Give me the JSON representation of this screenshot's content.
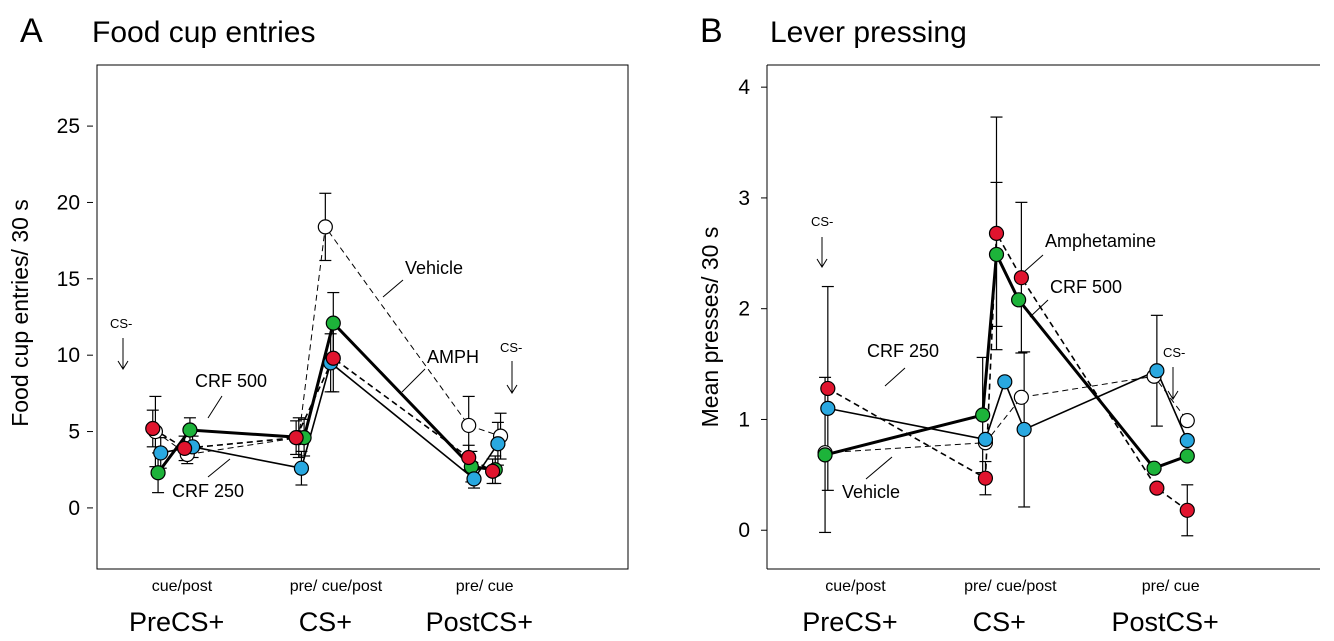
{
  "chart_data": [
    {
      "type": "line",
      "panel_letter": "A",
      "title": "Food cup entries",
      "ylabel": "Food cup entries/ 30 s",
      "ylim": [
        -4,
        29
      ],
      "yticks": [
        0,
        5,
        10,
        15,
        20,
        25
      ],
      "x_sublabels": [
        {
          "text": "cue/post",
          "x": 1.6
        },
        {
          "text": "pre/ cue/post",
          "x": 4.5
        },
        {
          "text": "pre/ cue",
          "x": 7.3
        }
      ],
      "x_groups": [
        {
          "text": "PreCS+",
          "x": 1.5
        },
        {
          "text": "CS+",
          "x": 4.3
        },
        {
          "text": "PostCS+",
          "x": 7.2
        }
      ],
      "xlim": [
        0,
        10
      ],
      "series": [
        {
          "name": "Vehicle",
          "color": "#ffffff",
          "dash": true,
          "width": 1,
          "x": [
            1.1,
            1.7,
            3.8,
            4.3,
            7.0,
            7.6
          ],
          "y": [
            5.0,
            3.5,
            4.6,
            18.4,
            5.4,
            4.7
          ],
          "err": [
            2.3,
            0.6,
            1.3,
            2.2,
            1.9,
            1.5
          ]
        },
        {
          "name": "CRF 500",
          "color": "#1db33a",
          "dash": false,
          "width": 3,
          "x": [
            1.15,
            1.75,
            3.9,
            4.45,
            7.05,
            7.5
          ],
          "y": [
            2.3,
            5.1,
            4.6,
            12.1,
            2.7,
            2.5
          ],
          "err": [
            1.3,
            0.8,
            1.2,
            2.0,
            1.0,
            0.9
          ]
        },
        {
          "name": "CRF 250",
          "color": "#29a8e0",
          "dash": false,
          "width": 1.6,
          "x": [
            1.2,
            1.8,
            3.85,
            4.4,
            7.1,
            7.55
          ],
          "y": [
            3.6,
            4.0,
            2.6,
            9.5,
            1.9,
            4.2
          ],
          "err": [
            1.0,
            0.7,
            1.1,
            1.9,
            0.6,
            1.4
          ]
        },
        {
          "name": "AMPH",
          "color": "#e0142e",
          "dash": true,
          "width": 1.6,
          "x": [
            1.05,
            1.65,
            3.75,
            4.45,
            7.0,
            7.45
          ],
          "y": [
            5.2,
            3.9,
            4.6,
            9.8,
            3.3,
            2.4
          ],
          "err": [
            1.2,
            0.8,
            1.1,
            2.2,
            0.8,
            0.8
          ]
        }
      ],
      "annotations": [
        {
          "text": "Vehicle"
        },
        {
          "text": "AMPH"
        },
        {
          "text": "CRF 500"
        },
        {
          "text": "CRF 250"
        },
        {
          "text": "CS-"
        },
        {
          "text": "CS-"
        }
      ]
    },
    {
      "type": "line",
      "panel_letter": "B",
      "title": "Lever pressing",
      "ylabel": "Mean presses/ 30 s",
      "ylim": [
        -0.35,
        4.2
      ],
      "yticks": [
        0,
        1,
        2,
        3,
        4
      ],
      "x_sublabels": [
        {
          "text": "cue/post",
          "x": 1.6
        },
        {
          "text": "pre/ cue/post",
          "x": 4.4
        },
        {
          "text": "pre/ cue",
          "x": 7.3
        }
      ],
      "x_groups": [
        {
          "text": "PreCS+",
          "x": 1.5
        },
        {
          "text": "CS+",
          "x": 4.2
        },
        {
          "text": "PostCS+",
          "x": 7.2
        }
      ],
      "xlim": [
        0,
        10
      ],
      "series": [
        {
          "name": "Vehicle",
          "color": "#ffffff",
          "dash": true,
          "width": 1,
          "x": [
            1.05,
            3.95,
            4.6,
            7.0,
            7.6
          ],
          "y": [
            0.7,
            0.79,
            1.2,
            1.39,
            0.99
          ],
          "err": [
            0,
            0,
            0,
            0,
            0
          ]
        },
        {
          "name": "Amphetamine",
          "color": "#e0142e",
          "dash": true,
          "width": 1.6,
          "x": [
            1.1,
            3.95,
            4.15,
            4.6,
            7.05,
            7.6
          ],
          "y": [
            1.28,
            0.47,
            2.68,
            2.28,
            0.38,
            0.18
          ],
          "err": [
            0.92,
            0.15,
            1.05,
            0.68,
            0,
            0.23
          ]
        },
        {
          "name": "CRF 500",
          "color": "#1db33a",
          "dash": false,
          "width": 3,
          "x": [
            1.05,
            3.9,
            4.15,
            4.55,
            7.0,
            7.6
          ],
          "y": [
            0.68,
            1.04,
            2.49,
            2.08,
            0.56,
            0.67
          ],
          "err": [
            0.7,
            0.52,
            0.65,
            0,
            0,
            0
          ]
        },
        {
          "name": "CRF 250",
          "color": "#29a8e0",
          "dash": false,
          "width": 1.6,
          "x": [
            1.1,
            3.95,
            4.3,
            4.65,
            7.05,
            7.6
          ],
          "y": [
            1.1,
            0.82,
            1.34,
            0.91,
            1.44,
            0.81
          ],
          "err": [
            0,
            0,
            0,
            0.7,
            0.5,
            0
          ]
        }
      ],
      "annotations": [
        {
          "text": "Amphetamine"
        },
        {
          "text": "CRF 500"
        },
        {
          "text": "CRF 250"
        },
        {
          "text": "Vehicle"
        },
        {
          "text": "CS-"
        },
        {
          "text": "CS-"
        }
      ]
    }
  ]
}
